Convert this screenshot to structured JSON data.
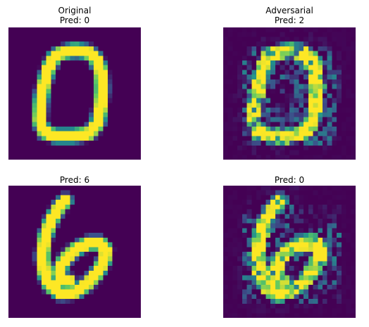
{
  "figure": {
    "colormap": "viridis",
    "colors": {
      "background": "#440154",
      "foreground": "#fde725"
    },
    "panels": [
      {
        "name": "original-top",
        "title_line1": "Original",
        "title_line2": "Pred: 0",
        "digit_prediction": 0
      },
      {
        "name": "adversarial-top",
        "title_line1": "Adversarial",
        "title_line2": "Pred: 2",
        "digit_prediction": 2
      },
      {
        "name": "original-bottom",
        "title_line1": "",
        "title_line2": "Pred: 6",
        "digit_prediction": 6
      },
      {
        "name": "adversarial-bottom",
        "title_line1": "",
        "title_line2": "Pred: 0",
        "digit_prediction": 0
      }
    ]
  }
}
